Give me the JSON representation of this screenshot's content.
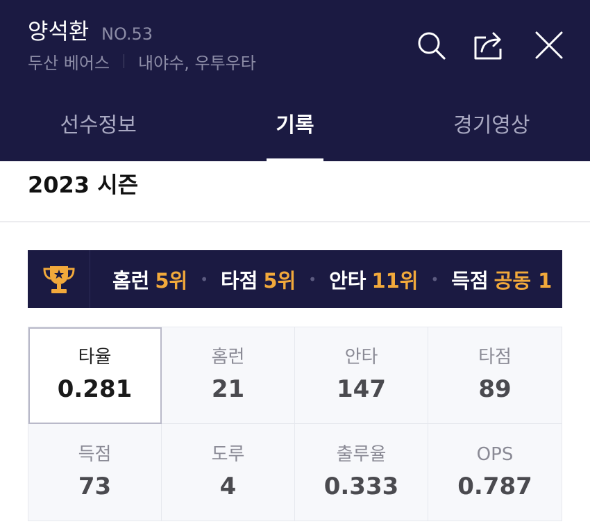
{
  "player": {
    "name": "양석환",
    "number": "NO.53",
    "team": "두산 베어스",
    "position": "내야수, 우투우타"
  },
  "icons": {
    "search": "search-icon",
    "share": "share-icon",
    "close": "close-icon",
    "trophy": "trophy-icon"
  },
  "tabs": [
    {
      "label": "선수정보",
      "active": false
    },
    {
      "label": "기록",
      "active": true
    },
    {
      "label": "경기영상",
      "active": false
    }
  ],
  "season": {
    "title": "2023 시즌"
  },
  "rankings": [
    {
      "label": "홈런",
      "value": "5위"
    },
    {
      "label": "타점",
      "value": "5위"
    },
    {
      "label": "안타",
      "value": "11위"
    },
    {
      "label": "득점",
      "value": "공동 1"
    }
  ],
  "stats": [
    {
      "label": "타율",
      "value": "0.281",
      "selected": true
    },
    {
      "label": "홈런",
      "value": "21",
      "selected": false
    },
    {
      "label": "안타",
      "value": "147",
      "selected": false
    },
    {
      "label": "타점",
      "value": "89",
      "selected": false
    },
    {
      "label": "득점",
      "value": "73",
      "selected": false
    },
    {
      "label": "도루",
      "value": "4",
      "selected": false
    },
    {
      "label": "출루율",
      "value": "0.333",
      "selected": false
    },
    {
      "label": "OPS",
      "value": "0.787",
      "selected": false
    }
  ],
  "colors": {
    "header_bg": "#1b1a42",
    "rank_accent": "#f2a93b",
    "trophy": "#f2a93b"
  }
}
